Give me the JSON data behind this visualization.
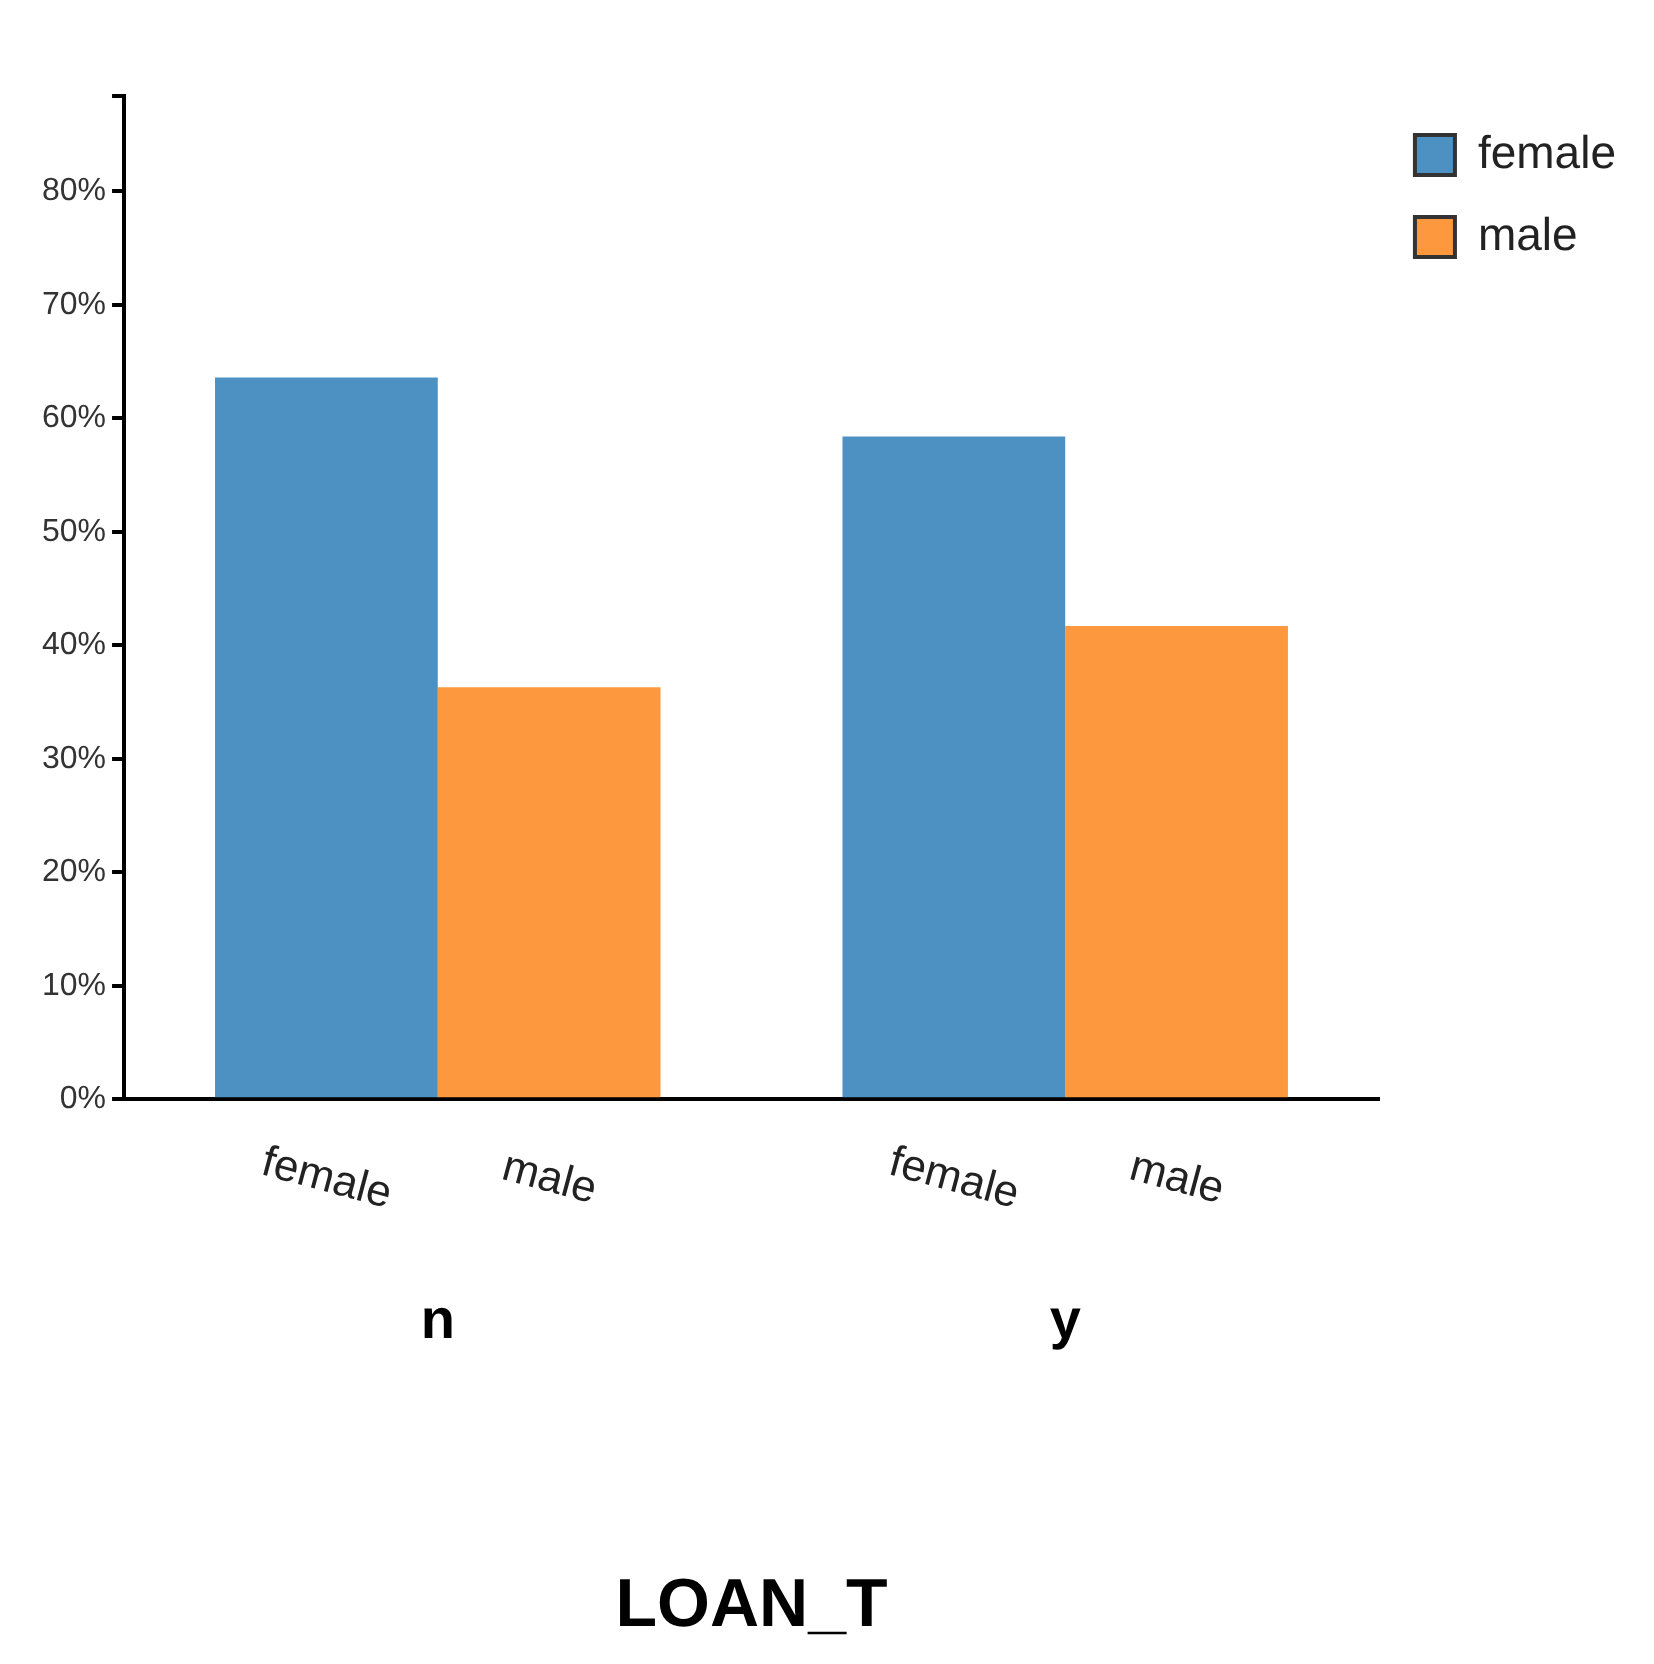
{
  "chart_data": {
    "type": "bar",
    "xlabel": "LOAN_T",
    "categories": [
      "n",
      "y"
    ],
    "series": [
      {
        "name": "female",
        "color": "#4d91c3",
        "values": [
          63.6,
          58.4
        ]
      },
      {
        "name": "male",
        "color": "#fe983f",
        "values": [
          36.3,
          41.7
        ]
      }
    ],
    "ylim": [
      0,
      88.4
    ],
    "yticks": [
      {
        "value": 0,
        "label": "0%"
      },
      {
        "value": 10,
        "label": "10%"
      },
      {
        "value": 20,
        "label": "20%"
      },
      {
        "value": 30,
        "label": "30%"
      },
      {
        "value": 40,
        "label": "40%"
      },
      {
        "value": 50,
        "label": "50%"
      },
      {
        "value": 60,
        "label": "60%"
      },
      {
        "value": 70,
        "label": "70%"
      },
      {
        "value": 80,
        "label": "80%"
      },
      {
        "value": 88.4,
        "label": null
      }
    ],
    "grid": false,
    "legend": "top right"
  }
}
